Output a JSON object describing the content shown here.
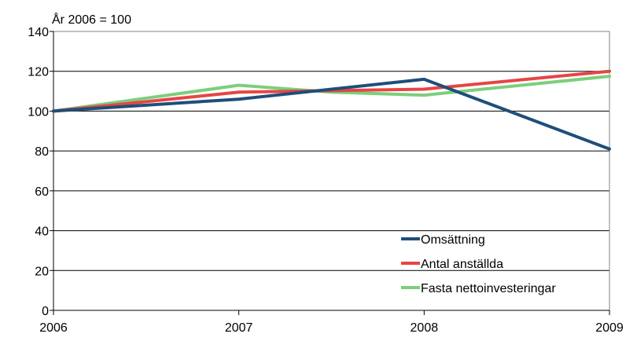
{
  "chart_data": {
    "type": "line",
    "ylabel": "År 2006 = 100",
    "x": [
      "2006",
      "2007",
      "2008",
      "2009"
    ],
    "ylim": [
      0,
      140
    ],
    "yticks": [
      0,
      20,
      40,
      60,
      80,
      100,
      120,
      140
    ],
    "grid": true,
    "legend_position": "bottom-right",
    "series": [
      {
        "name": "Omsättning",
        "color": "#1f4e79",
        "values": [
          100,
          106,
          116,
          81
        ]
      },
      {
        "name": "Antal anställda",
        "color": "#e64545",
        "values": [
          100,
          109.5,
          111,
          120
        ]
      },
      {
        "name": "Fasta nettoinvesteringar",
        "color": "#7ccf7c",
        "values": [
          100,
          113,
          108,
          117.5
        ],
        "extra_points": [
          {
            "x": 2007.5,
            "y": 109.5
          }
        ]
      }
    ]
  }
}
